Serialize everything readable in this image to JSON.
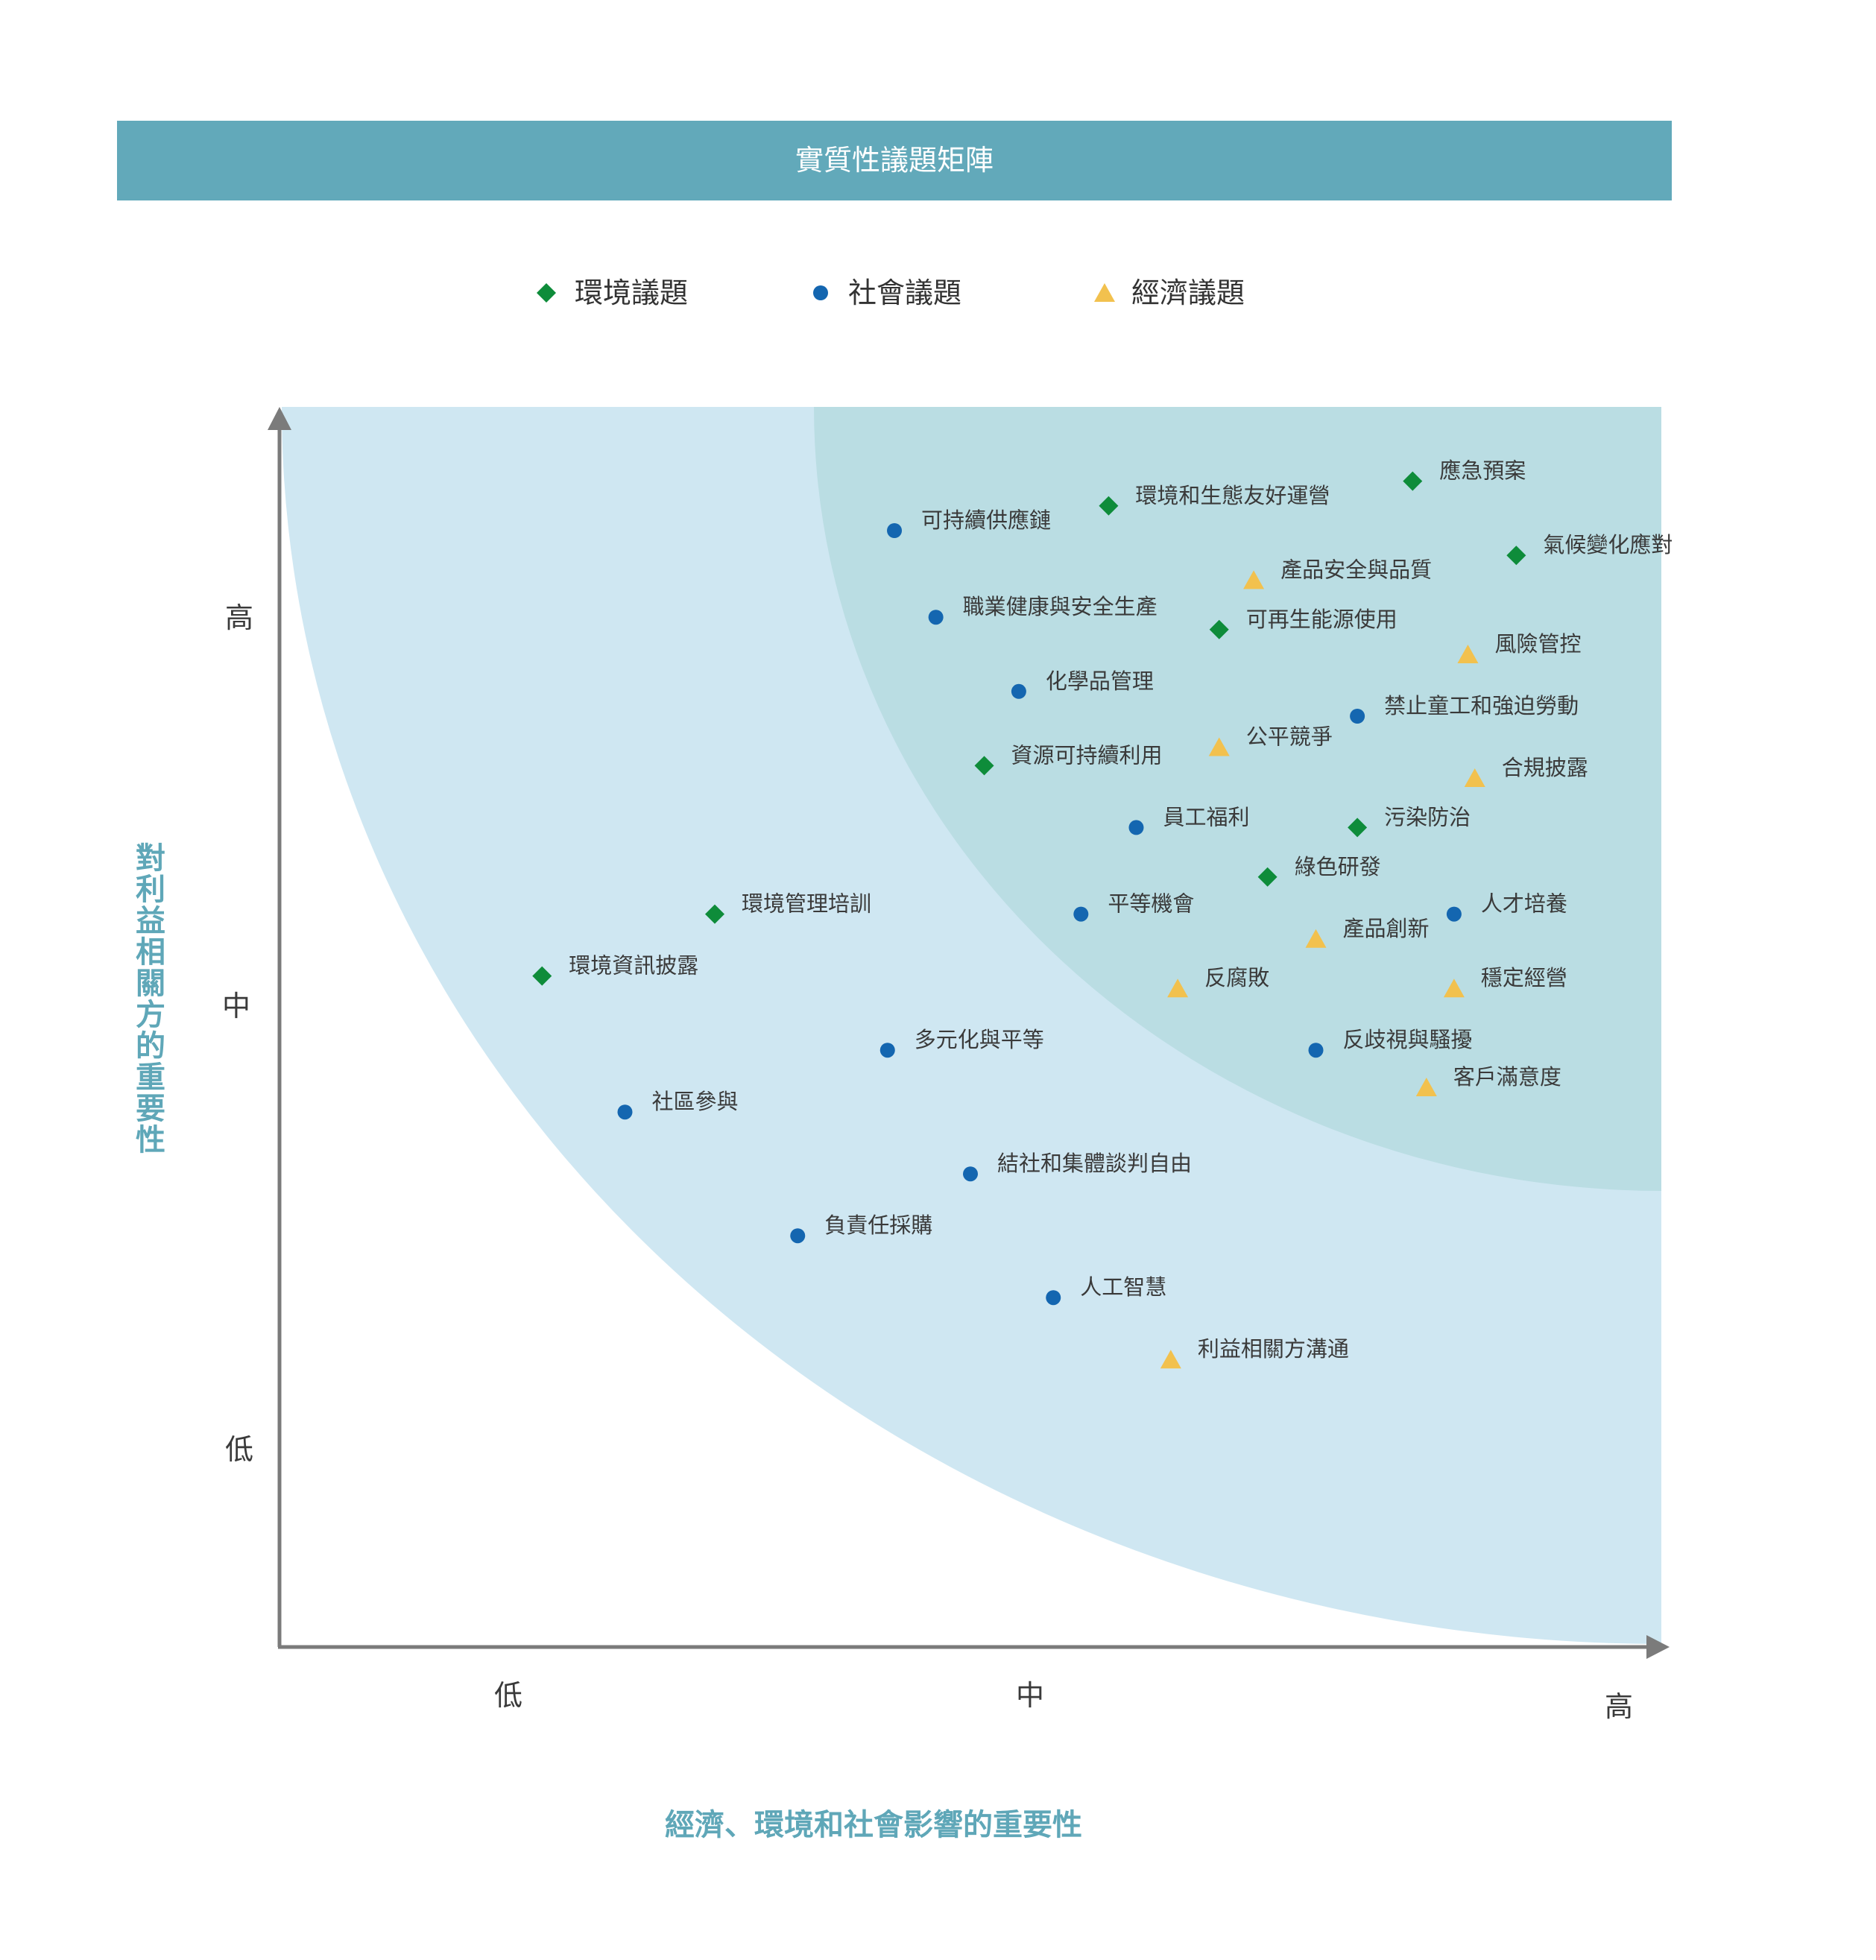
{
  "chart_data": {
    "type": "scatter",
    "title": "實質性議題矩陣",
    "xlabel": "經濟、環境和社會影響的重要性",
    "ylabel": "對利益相關方的重要性",
    "x_ticks": [
      "低",
      "中",
      "高"
    ],
    "y_ticks": [
      "高",
      "中",
      "低"
    ],
    "legend": [
      {
        "name": "環境議題",
        "shape": "diamond",
        "color": "#0e8c3a"
      },
      {
        "name": "社會議題",
        "shape": "circle",
        "color": "#1466b0"
      },
      {
        "name": "經濟議題",
        "shape": "triangle",
        "color": "#f2c14e"
      }
    ],
    "region_colors": {
      "outer": "#cfe7f2",
      "inner": "#badde3"
    },
    "points": [
      {
        "label": "應急預案",
        "cat": "環境議題",
        "x": 8.2,
        "y": 9.4
      },
      {
        "label": "環境和生態友好運營",
        "cat": "環境議題",
        "x": 6.0,
        "y": 9.2
      },
      {
        "label": "可持續供應鏈",
        "cat": "社會議題",
        "x": 4.45,
        "y": 9.0
      },
      {
        "label": "氣候變化應對",
        "cat": "環境議題",
        "x": 8.95,
        "y": 8.8
      },
      {
        "label": "產品安全與品質",
        "cat": "經濟議題",
        "x": 7.05,
        "y": 8.6
      },
      {
        "label": "職業健康與安全生產",
        "cat": "社會議題",
        "x": 4.75,
        "y": 8.3
      },
      {
        "label": "可再生能源使用",
        "cat": "環境議題",
        "x": 6.8,
        "y": 8.2
      },
      {
        "label": "風險管控",
        "cat": "經濟議題",
        "x": 8.6,
        "y": 8.0
      },
      {
        "label": "化學品管理",
        "cat": "社會議題",
        "x": 5.35,
        "y": 7.7
      },
      {
        "label": "禁止童工和強迫勞動",
        "cat": "社會議題",
        "x": 7.8,
        "y": 7.5
      },
      {
        "label": "公平競爭",
        "cat": "經濟議題",
        "x": 6.8,
        "y": 7.25
      },
      {
        "label": "資源可持續利用",
        "cat": "環境議題",
        "x": 5.1,
        "y": 7.1
      },
      {
        "label": "合規披露",
        "cat": "經濟議題",
        "x": 8.65,
        "y": 7.0
      },
      {
        "label": "員工福利",
        "cat": "社會議題",
        "x": 6.2,
        "y": 6.6
      },
      {
        "label": "污染防治",
        "cat": "環境議題",
        "x": 7.8,
        "y": 6.6
      },
      {
        "label": "綠色研發",
        "cat": "環境議題",
        "x": 7.15,
        "y": 6.2
      },
      {
        "label": "環境管理培訓",
        "cat": "環境議題",
        "x": 3.15,
        "y": 5.9
      },
      {
        "label": "平等機會",
        "cat": "社會議題",
        "x": 5.8,
        "y": 5.9
      },
      {
        "label": "人才培養",
        "cat": "社會議題",
        "x": 8.5,
        "y": 5.9
      },
      {
        "label": "產品創新",
        "cat": "經濟議題",
        "x": 7.5,
        "y": 5.7
      },
      {
        "label": "環境資訊披露",
        "cat": "環境議題",
        "x": 1.9,
        "y": 5.4
      },
      {
        "label": "反腐敗",
        "cat": "經濟議題",
        "x": 6.5,
        "y": 5.3
      },
      {
        "label": "穩定經營",
        "cat": "經濟議題",
        "x": 8.5,
        "y": 5.3
      },
      {
        "label": "多元化與平等",
        "cat": "社會議題",
        "x": 4.4,
        "y": 4.8
      },
      {
        "label": "反歧視與騷擾",
        "cat": "社會議題",
        "x": 7.5,
        "y": 4.8
      },
      {
        "label": "客戶滿意度",
        "cat": "經濟議題",
        "x": 8.3,
        "y": 4.5
      },
      {
        "label": "社區參與",
        "cat": "社會議題",
        "x": 2.5,
        "y": 4.3
      },
      {
        "label": "結社和集體談判自由",
        "cat": "社會議題",
        "x": 5.0,
        "y": 3.8
      },
      {
        "label": "負責任採購",
        "cat": "社會議題",
        "x": 3.75,
        "y": 3.3
      },
      {
        "label": "人工智慧",
        "cat": "社會議題",
        "x": 5.6,
        "y": 2.8
      },
      {
        "label": "利益相關方溝通",
        "cat": "經濟議題",
        "x": 6.45,
        "y": 2.3
      }
    ]
  }
}
